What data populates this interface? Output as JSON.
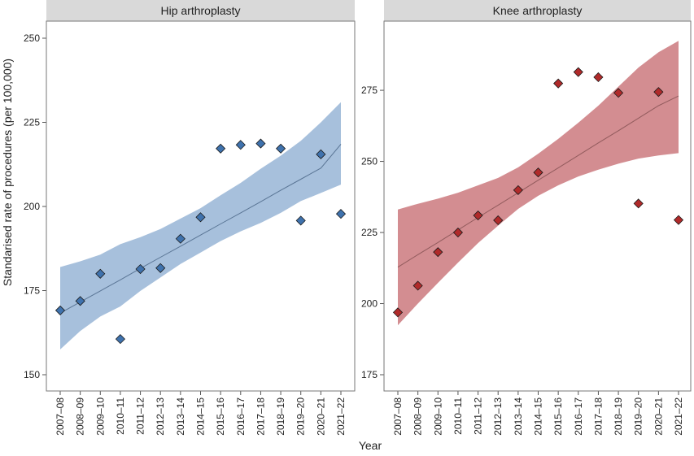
{
  "ylabel": "Standarised rate of procedures (per 100,000)",
  "xlabel": "Year",
  "chart_data": [
    {
      "type": "scatter",
      "title": "Hip arthroplasty",
      "colors": {
        "marker": "#3f72ad",
        "band": "#a7c0dc",
        "line": "#5a7595"
      },
      "categories": [
        "2007–08",
        "2008–09",
        "2009–10",
        "2010–11",
        "2011–12",
        "2012–13",
        "2013–14",
        "2014–15",
        "2015–16",
        "2016–17",
        "2017–18",
        "2018–19",
        "2019–20",
        "2020–21",
        "2021–22"
      ],
      "values": [
        169.1,
        171.9,
        180.0,
        160.6,
        181.4,
        181.7,
        190.4,
        196.8,
        217.2,
        218.3,
        218.7,
        217.2,
        195.8,
        215.5,
        197.8
      ],
      "trend": [
        168.3,
        171.6,
        174.9,
        178.2,
        181.6,
        184.9,
        188.2,
        191.5,
        194.8,
        198.1,
        201.4,
        204.8,
        208.1,
        211.4,
        218.5
      ],
      "ci_lower": [
        157.5,
        163.0,
        167.3,
        170.3,
        174.9,
        178.9,
        182.9,
        186.3,
        189.7,
        192.6,
        195.1,
        198.1,
        201.6,
        204.0,
        206.5
      ],
      "ci_upper": [
        182.0,
        183.7,
        185.7,
        188.8,
        190.9,
        193.3,
        196.4,
        199.5,
        203.3,
        207.0,
        211.2,
        215.1,
        219.5,
        225.0,
        231.0
      ],
      "ylim": [
        150,
        250
      ],
      "yticks": [
        150,
        175,
        200,
        225,
        250
      ]
    },
    {
      "type": "scatter",
      "title": "Knee arthroplasty",
      "colors": {
        "marker": "#b02a2a",
        "band": "#d38d91",
        "line": "#925b5d"
      },
      "categories": [
        "2007–08",
        "2008–09",
        "2009–10",
        "2010–11",
        "2011–12",
        "2012–13",
        "2013–14",
        "2014–15",
        "2015–16",
        "2016–17",
        "2017–18",
        "2018–19",
        "2019–20",
        "2020–21",
        "2021–22"
      ],
      "values": [
        196.9,
        206.3,
        218.1,
        225.0,
        231.0,
        229.3,
        239.9,
        246.1,
        277.4,
        281.4,
        279.6,
        274.1,
        235.2,
        274.4,
        229.4
      ],
      "trend": [
        212.8,
        217.2,
        221.5,
        225.9,
        230.3,
        234.6,
        239.0,
        243.4,
        247.7,
        252.1,
        256.5,
        260.8,
        265.2,
        269.6,
        273.0
      ],
      "ci_lower": [
        192.4,
        200.0,
        207.3,
        214.4,
        221.3,
        227.4,
        233.3,
        237.9,
        241.6,
        244.7,
        247.1,
        249.2,
        251.0,
        252.1,
        252.9
      ],
      "ci_upper": [
        233.1,
        235.1,
        236.9,
        239.0,
        241.6,
        244.2,
        247.9,
        252.7,
        257.9,
        263.6,
        269.6,
        276.3,
        283.0,
        288.4,
        292.4
      ],
      "ylim": [
        175,
        300
      ],
      "yticks": [
        175,
        200,
        225,
        250,
        275
      ]
    }
  ]
}
